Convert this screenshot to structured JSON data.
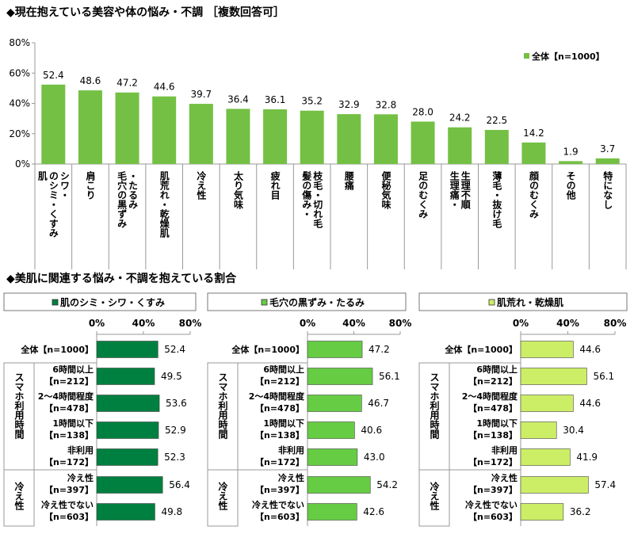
{
  "section1": {
    "title": "◆現在抱えている美容や体の悩み・不調 ［複数回答可］"
  },
  "section2": {
    "title": "◆美肌に関連する悩み・不調を抱えている割合"
  },
  "colors": {
    "main_bar": "#74c044",
    "panel1": "#008040",
    "panel2": "#66cc44",
    "panel3": "#ccee66",
    "axis": "#999999"
  },
  "chart_data": [
    {
      "type": "bar",
      "title": "◆現在抱えている美容や体の悩み・不調 ［複数回答可］",
      "categories": [
        "肌のシミ・シワ・くすみ",
        "肩こり",
        "毛穴の黒ずみ・たるみ",
        "肌荒れ・乾燥肌",
        "冷え性",
        "太り気味",
        "疲れ目",
        "髪の傷み・枝毛・切れ毛",
        "腰痛",
        "便秘気味",
        "足のむくみ",
        "生理痛・生理不順",
        "薄毛・抜け毛",
        "顔のむくみ",
        "その他",
        "特になし"
      ],
      "category_columns": [
        [
          "肌",
          "のシミ・くすみ",
          "シワ・"
        ],
        [
          "肩こり"
        ],
        [
          "毛穴の黒ずみ",
          "・たるみ"
        ],
        [
          "肌荒れ・乾燥肌"
        ],
        [
          "冷え性"
        ],
        [
          "太り気味"
        ],
        [
          "疲れ目"
        ],
        [
          "髪の傷み・",
          "枝毛・切れ毛"
        ],
        [
          "腰痛"
        ],
        [
          "便秘気味"
        ],
        [
          "足のむくみ"
        ],
        [
          "生理痛・",
          "生理不順"
        ],
        [
          "薄毛・抜け毛"
        ],
        [
          "顔のむくみ"
        ],
        [
          "その他"
        ],
        [
          "特になし"
        ]
      ],
      "series": [
        {
          "name": "全体【n=1000】",
          "values": [
            52.4,
            48.6,
            47.2,
            44.6,
            39.7,
            36.4,
            36.1,
            35.2,
            32.9,
            32.8,
            28.0,
            24.2,
            22.5,
            14.2,
            1.9,
            3.7
          ]
        }
      ],
      "value_labels": [
        "52.4",
        "48.6",
        "47.2",
        "44.6",
        "39.7",
        "36.4",
        "36.1",
        "35.2",
        "32.9",
        "32.8",
        "28.0",
        "24.2",
        "22.5",
        "14.2",
        "1.9",
        "3.7"
      ],
      "ylim": [
        0,
        80
      ],
      "yticks": [
        "0%",
        "20%",
        "40%",
        "60%",
        "80%"
      ],
      "legend": "top-right"
    },
    {
      "type": "bar",
      "orientation": "horizontal",
      "title": "肌のシミ・シワ・くすみ",
      "categories": [
        "全体【n=1000】",
        "6時間以上【n=212】",
        "2～4時間程度【n=478】",
        "1時間以下【n=138】",
        "非利用【n=172】",
        "冷え性【n=397】",
        "冷え性でない【n=603】"
      ],
      "values": [
        52.4,
        49.5,
        53.6,
        52.9,
        52.3,
        56.4,
        49.8
      ],
      "value_labels": [
        "52.4",
        "49.5",
        "53.6",
        "52.9",
        "52.3",
        "56.4",
        "49.8"
      ],
      "xlim": [
        0,
        80
      ],
      "xticks": [
        "0%",
        "40%",
        "80%"
      ]
    },
    {
      "type": "bar",
      "orientation": "horizontal",
      "title": "毛穴の黒ずみ・たるみ",
      "categories": [
        "全体【n=1000】",
        "6時間以上【n=212】",
        "2～4時間程度【n=478】",
        "1時間以下【n=138】",
        "非利用【n=172】",
        "冷え性【n=397】",
        "冷え性でない【n=603】"
      ],
      "values": [
        47.2,
        56.1,
        46.7,
        40.6,
        43.0,
        54.2,
        42.6
      ],
      "value_labels": [
        "47.2",
        "56.1",
        "46.7",
        "40.6",
        "43.0",
        "54.2",
        "42.6"
      ],
      "xlim": [
        0,
        80
      ],
      "xticks": [
        "0%",
        "40%",
        "80%"
      ]
    },
    {
      "type": "bar",
      "orientation": "horizontal",
      "title": "肌荒れ・乾燥肌",
      "categories": [
        "全体【n=1000】",
        "6時間以上【n=212】",
        "2～4時間程度【n=478】",
        "1時間以下【n=138】",
        "非利用【n=172】",
        "冷え性【n=397】",
        "冷え性でない【n=603】"
      ],
      "values": [
        44.6,
        56.1,
        44.6,
        30.4,
        41.9,
        57.4,
        36.2
      ],
      "value_labels": [
        "44.6",
        "56.1",
        "44.6",
        "30.4",
        "41.9",
        "57.4",
        "36.2"
      ],
      "xlim": [
        0,
        80
      ],
      "xticks": [
        "0%",
        "40%",
        "80%"
      ]
    }
  ],
  "row_labels": [
    [
      "全体【n=1000】"
    ],
    [
      "6時間以上",
      "【n=212】"
    ],
    [
      "2～4時間程度",
      "【n=478】"
    ],
    [
      "1時間以下",
      "【n=138】"
    ],
    [
      "非利用",
      "【n=172】"
    ],
    [
      "冷え性",
      "【n=397】"
    ],
    [
      "冷え性でない",
      "【n=603】"
    ]
  ],
  "group_labels": {
    "smartphone": "スマホ利用時間",
    "cold": "冷え性"
  }
}
